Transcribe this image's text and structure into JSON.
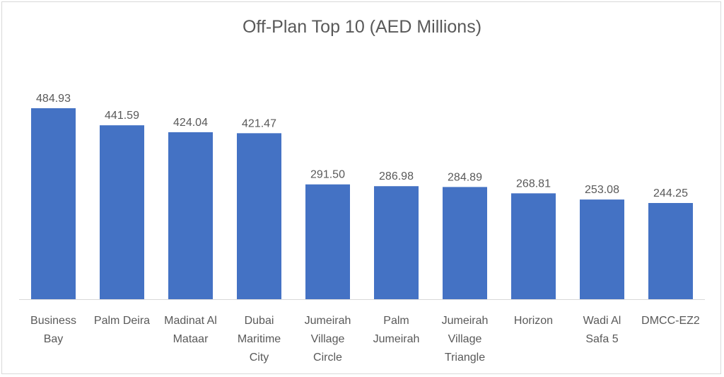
{
  "chart_data": {
    "type": "bar",
    "title": "Off-Plan Top 10 (AED Millions)",
    "xlabel": "",
    "ylabel": "",
    "ylim": [
      0,
      484.93
    ],
    "grid": false,
    "legend": "none",
    "bar_color": "#4472c4",
    "categories": [
      [
        "Business",
        "Bay"
      ],
      [
        "Palm Deira"
      ],
      [
        "Madinat Al",
        "Mataar"
      ],
      [
        "Dubai",
        "Maritime",
        "City"
      ],
      [
        "Jumeirah",
        "Village",
        "Circle"
      ],
      [
        "Palm",
        "Jumeirah"
      ],
      [
        "Jumeirah",
        "Village",
        "Triangle"
      ],
      [
        "Horizon"
      ],
      [
        "Wadi Al",
        "Safa 5"
      ],
      [
        "DMCC-EZ2"
      ]
    ],
    "values": [
      484.93,
      441.59,
      424.04,
      421.47,
      291.5,
      286.98,
      284.89,
      268.81,
      253.08,
      244.25
    ],
    "data_labels": [
      "484.93",
      "441.59",
      "424.04",
      "421.47",
      "291.50",
      "286.98",
      "284.89",
      "268.81",
      "253.08",
      "244.25"
    ]
  }
}
